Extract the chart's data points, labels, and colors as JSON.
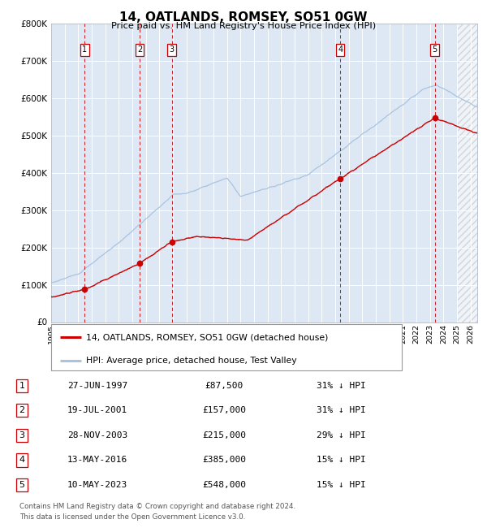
{
  "title": "14, OATLANDS, ROMSEY, SO51 0GW",
  "subtitle": "Price paid vs. HM Land Registry's House Price Index (HPI)",
  "hpi_color": "#aac4e0",
  "price_color": "#cc0000",
  "plot_bg": "#dde8f4",
  "transactions": [
    {
      "num": 1,
      "price": 87500,
      "x_year": 1997.49
    },
    {
      "num": 2,
      "price": 157000,
      "x_year": 2001.55
    },
    {
      "num": 3,
      "price": 215000,
      "x_year": 2003.91
    },
    {
      "num": 4,
      "price": 385000,
      "x_year": 2016.37
    },
    {
      "num": 5,
      "price": 548000,
      "x_year": 2023.36
    }
  ],
  "legend_entries": [
    {
      "label": "14, OATLANDS, ROMSEY, SO51 0GW (detached house)",
      "color": "#cc0000"
    },
    {
      "label": "HPI: Average price, detached house, Test Valley",
      "color": "#aac4e0"
    }
  ],
  "table_rows": [
    {
      "num": 1,
      "date": "27-JUN-1997",
      "price": "£87,500",
      "pct": "31% ↓ HPI"
    },
    {
      "num": 2,
      "date": "19-JUL-2001",
      "price": "£157,000",
      "pct": "31% ↓ HPI"
    },
    {
      "num": 3,
      "date": "28-NOV-2003",
      "price": "£215,000",
      "pct": "29% ↓ HPI"
    },
    {
      "num": 4,
      "date": "13-MAY-2016",
      "price": "£385,000",
      "pct": "15% ↓ HPI"
    },
    {
      "num": 5,
      "date": "10-MAY-2023",
      "price": "£548,000",
      "pct": "15% ↓ HPI"
    }
  ],
  "footer1": "Contains HM Land Registry data © Crown copyright and database right 2024.",
  "footer2": "This data is licensed under the Open Government Licence v3.0.",
  "ylim": [
    0,
    800000
  ],
  "xlim_start": 1995.0,
  "xlim_end": 2026.5,
  "yticks": [
    0,
    100000,
    200000,
    300000,
    400000,
    500000,
    600000,
    700000,
    800000
  ],
  "ytick_labels": [
    "£0",
    "£100K",
    "£200K",
    "£300K",
    "£400K",
    "£500K",
    "£600K",
    "£700K",
    "£800K"
  ],
  "xtick_years": [
    1995,
    1996,
    1997,
    1998,
    1999,
    2000,
    2001,
    2002,
    2003,
    2004,
    2005,
    2006,
    2007,
    2008,
    2009,
    2010,
    2011,
    2012,
    2013,
    2014,
    2015,
    2016,
    2017,
    2018,
    2019,
    2020,
    2021,
    2022,
    2023,
    2024,
    2025,
    2026
  ]
}
